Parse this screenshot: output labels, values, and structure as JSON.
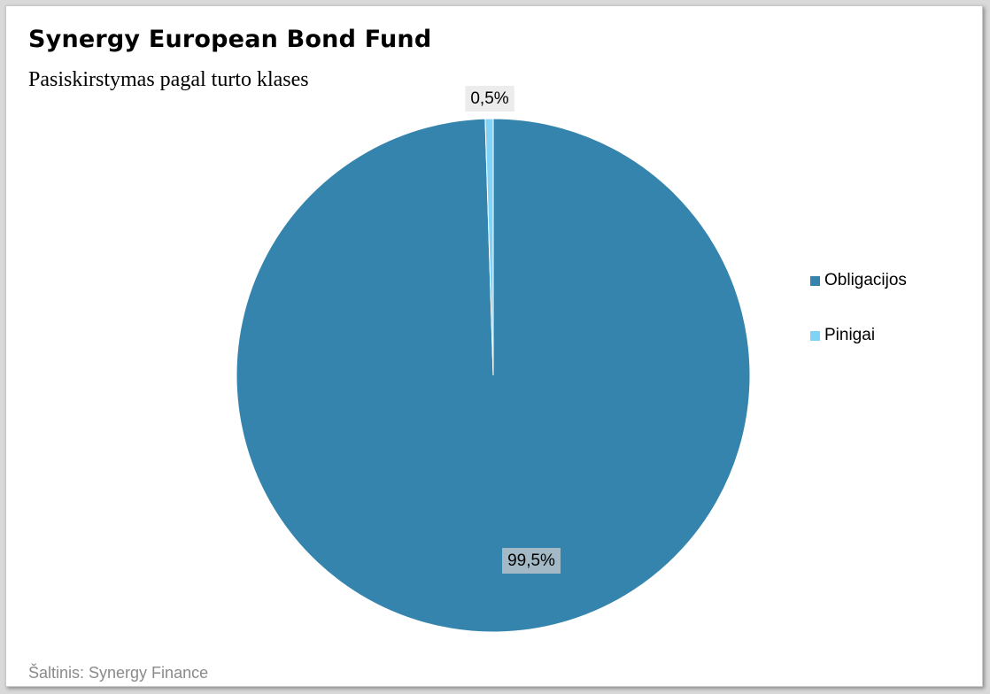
{
  "header": {
    "title": "Synergy European Bond Fund",
    "subtitle": "Pasiskirstymas pagal turto klases"
  },
  "footer": {
    "source": "Šaltinis: Synergy Finance"
  },
  "colors": {
    "obligacijos": "#3584ad",
    "pinigai": "#7fd3f7"
  },
  "chart_data": {
    "type": "pie",
    "title": "Synergy European Bond Fund",
    "subtitle": "Pasiskirstymas pagal turto klases",
    "legend_position": "right",
    "slices": [
      {
        "label": "Obligacijos",
        "value": 99.5,
        "display": "99,5%",
        "color": "#3584ad"
      },
      {
        "label": "Pinigai",
        "value": 0.5,
        "display": "0,5%",
        "color": "#7fd3f7"
      }
    ]
  }
}
